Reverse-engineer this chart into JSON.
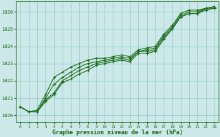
{
  "xlabel": "Graphe pression niveau de la mer (hPa)",
  "ylim": [
    1019.6,
    1026.6
  ],
  "xlim": [
    -0.5,
    23.5
  ],
  "yticks": [
    1020,
    1021,
    1022,
    1023,
    1024,
    1025,
    1026
  ],
  "xticks": [
    0,
    1,
    2,
    3,
    4,
    5,
    6,
    7,
    8,
    9,
    10,
    11,
    12,
    13,
    14,
    15,
    16,
    17,
    18,
    19,
    20,
    21,
    22,
    23
  ],
  "bg_color": "#cce8e8",
  "grid_color": "#99cccc",
  "line_color": "#1a6b1a",
  "series": [
    [
      1020.5,
      1020.2,
      1020.2,
      1020.8,
      1021.2,
      1021.9,
      1022.1,
      1022.4,
      1022.6,
      1022.9,
      1023.0,
      1023.1,
      1023.2,
      1023.1,
      1023.6,
      1023.6,
      1023.7,
      1024.4,
      1025.0,
      1025.7,
      1025.9,
      1025.9,
      1026.1,
      1026.2
    ],
    [
      1020.5,
      1020.2,
      1020.2,
      1020.9,
      1021.3,
      1022.0,
      1022.3,
      1022.6,
      1022.8,
      1023.0,
      1023.1,
      1023.2,
      1023.3,
      1023.2,
      1023.7,
      1023.7,
      1023.8,
      1024.5,
      1025.0,
      1025.7,
      1025.9,
      1025.9,
      1026.2,
      1026.2
    ],
    [
      1020.5,
      1020.2,
      1020.2,
      1021.0,
      1021.8,
      1022.2,
      1022.5,
      1022.8,
      1023.0,
      1023.1,
      1023.2,
      1023.3,
      1023.4,
      1023.3,
      1023.7,
      1023.8,
      1023.9,
      1024.6,
      1025.1,
      1025.8,
      1026.0,
      1026.0,
      1026.2,
      1026.3
    ],
    [
      1020.5,
      1020.2,
      1020.3,
      1021.2,
      1022.2,
      1022.5,
      1022.8,
      1023.0,
      1023.2,
      1023.3,
      1023.3,
      1023.4,
      1023.5,
      1023.4,
      1023.8,
      1023.9,
      1024.0,
      1024.7,
      1025.2,
      1025.9,
      1026.1,
      1026.1,
      1026.2,
      1026.3
    ]
  ]
}
